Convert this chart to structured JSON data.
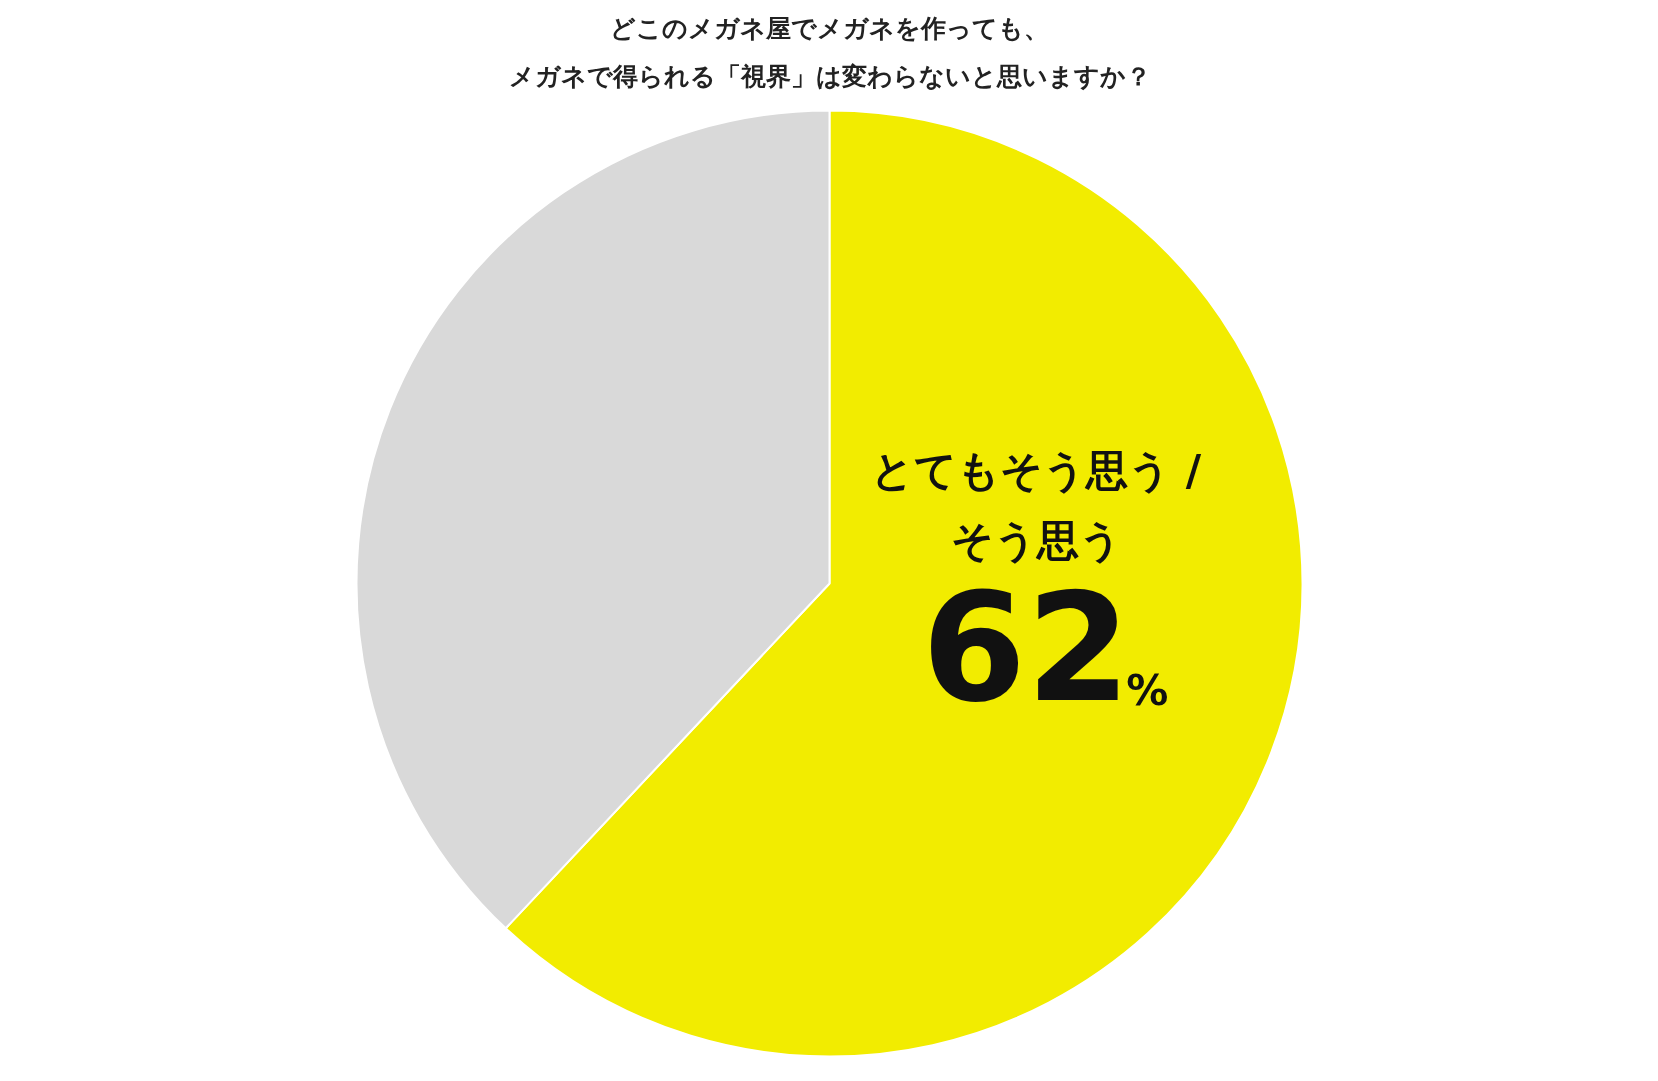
{
  "chart_data": {
    "type": "pie",
    "title": "どこのメガネ屋でメガネを作っても、メガネで得られる「視界」は変わらないと思いますか？",
    "categories": [
      "とてもそう思う / そう思う",
      null
    ],
    "values": [
      62,
      38
    ],
    "colors": [
      "#f2ec00",
      "#d9d9d9"
    ],
    "value_labels": [
      "62%",
      null
    ]
  }
}
